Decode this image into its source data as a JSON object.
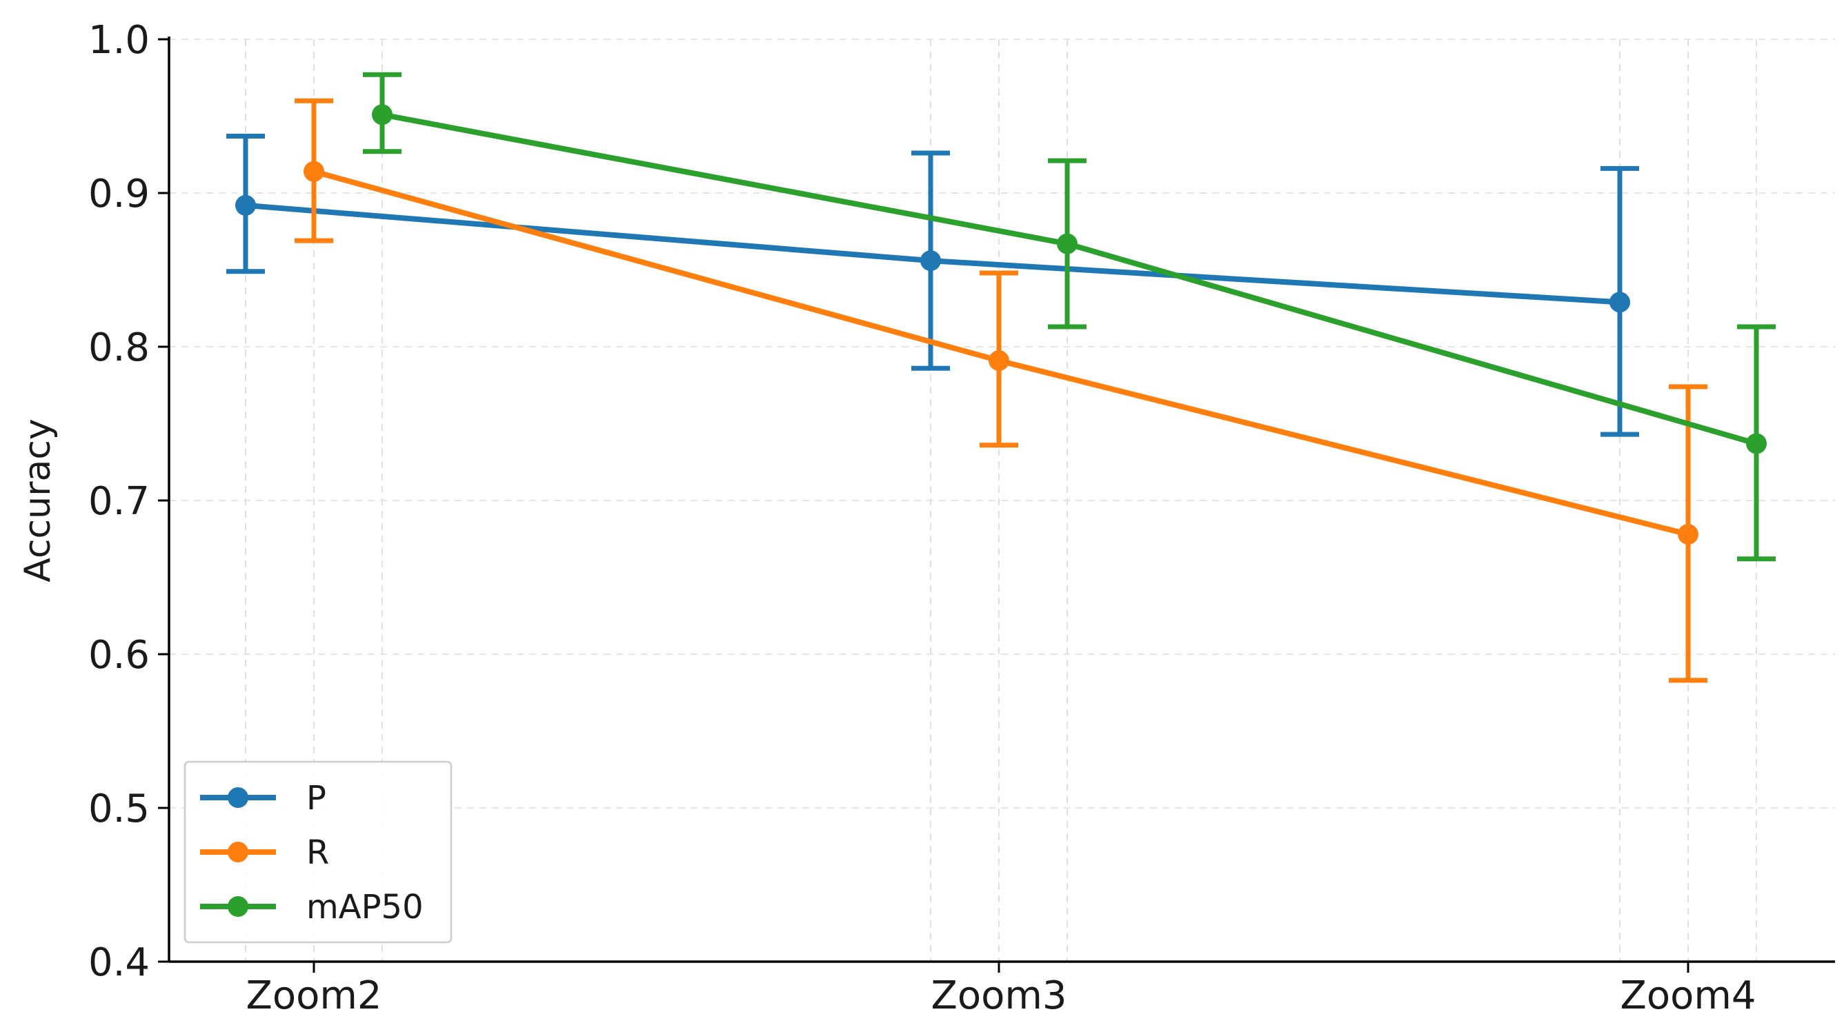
{
  "chart_data": {
    "type": "line",
    "title": "",
    "xlabel": "",
    "ylabel": "Accuracy",
    "categories": [
      "Zoom2",
      "Zoom3",
      "Zoom4"
    ],
    "ylim": [
      0.4,
      1.0
    ],
    "yticks": [
      "0.4",
      "0.5",
      "0.6",
      "0.7",
      "0.8",
      "0.9",
      "1.0"
    ],
    "grid": true,
    "legend_position": "lower-left",
    "series": [
      {
        "name": "P",
        "color": "#1f77b4",
        "values": [
          0.892,
          0.856,
          0.829
        ],
        "error_low": [
          0.849,
          0.786,
          0.743
        ],
        "error_high": [
          0.937,
          0.926,
          0.916
        ]
      },
      {
        "name": "R",
        "color": "#ff7f0e",
        "values": [
          0.914,
          0.791,
          0.678
        ],
        "error_low": [
          0.869,
          0.736,
          0.583
        ],
        "error_high": [
          0.96,
          0.848,
          0.774
        ]
      },
      {
        "name": "mAP50",
        "color": "#2ca02c",
        "values": [
          0.951,
          0.867,
          0.737
        ],
        "error_low": [
          0.927,
          0.813,
          0.662
        ],
        "error_high": [
          0.977,
          0.921,
          0.813
        ]
      }
    ]
  }
}
